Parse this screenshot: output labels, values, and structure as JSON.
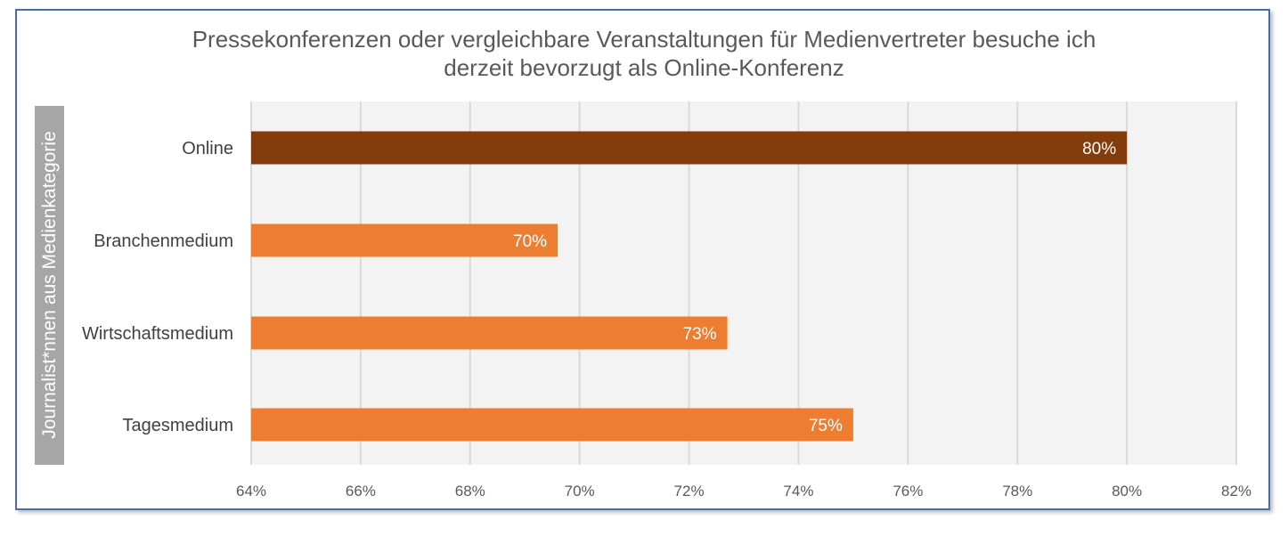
{
  "chart_data": {
    "type": "bar",
    "orientation": "horizontal",
    "title": "Pressekonferenzen oder vergleichbare Veranstaltungen für Medienvertreter besuche ich derzeit bevorzugt als Online-Konferenz",
    "title_lines": [
      "Pressekonferenzen oder vergleichbare Veranstaltungen für Medienvertreter besuche ich",
      "derzeit bevorzugt als Online-Konferenz"
    ],
    "ylabel": "Journalist*nnen aus Medienkategorie",
    "xlabel": "",
    "categories": [
      "Online",
      "Branchenmedium",
      "Wirtschaftsmedium",
      "Tagesmedium"
    ],
    "values": [
      80,
      69.6,
      72.7,
      75
    ],
    "data_labels": [
      "80%",
      "70%",
      "73%",
      "75%"
    ],
    "bar_colors": [
      "#843c0c",
      "#ed7d31",
      "#ed7d31",
      "#ed7d31"
    ],
    "xlim": [
      64,
      82
    ],
    "xticks": [
      64,
      66,
      68,
      70,
      72,
      74,
      76,
      78,
      80,
      82
    ],
    "xtick_labels": [
      "64%",
      "66%",
      "68%",
      "70%",
      "72%",
      "74%",
      "76%",
      "78%",
      "80%",
      "82%"
    ],
    "grid": true,
    "legend": "none"
  }
}
